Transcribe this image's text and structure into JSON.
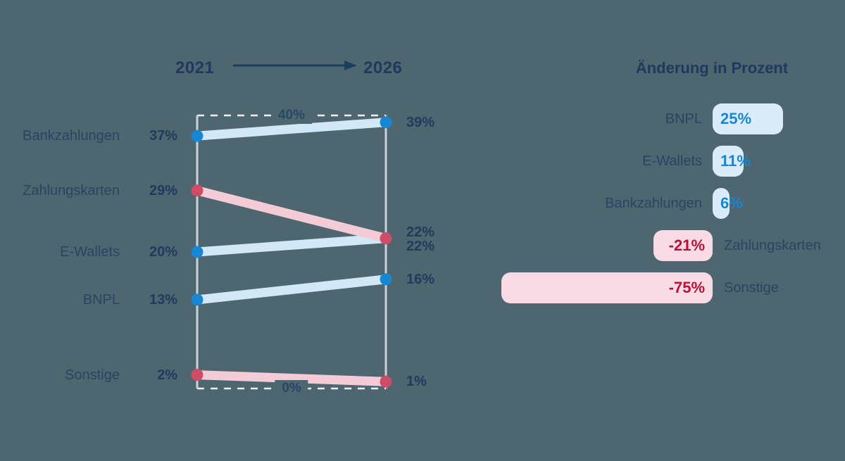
{
  "colors": {
    "background": "#4d6670",
    "navy_strong": "#223a5c",
    "navy_label": "#2c4462",
    "blue_accent": "#1787d3",
    "blue_ribbon": "#d2e8f7",
    "blue_bar": "#daecf9",
    "red_dot": "#cf4c66",
    "pink_ribbon": "#f3ccd8",
    "pink_bar": "#f8dbe4",
    "red_text": "#bb1136",
    "axis": "#ccd2d8",
    "grid_dash": "#eef1f3",
    "arrow": "#1c3e5e"
  },
  "chart_data": [
    {
      "type": "slope",
      "title": "2021 to 2026 share of payment methods",
      "x_labels": [
        "2021",
        "2026"
      ],
      "ylim": [
        0,
        40
      ],
      "unit": "%",
      "grid": "dashed-top-bottom",
      "gridlines": [
        {
          "value": 40,
          "label": "40%"
        },
        {
          "value": 0,
          "label": "0%"
        }
      ],
      "series": [
        {
          "name": "Bankzahlungen",
          "start": 37,
          "end": 39,
          "start_label": "37%",
          "end_label": "39%",
          "trend": "up"
        },
        {
          "name": "Zahlungskarten",
          "start": 29,
          "end": 22,
          "start_label": "29%",
          "end_label": "22%",
          "trend": "down"
        },
        {
          "name": "E-Wallets",
          "start": 20,
          "end": 22,
          "start_label": "20%",
          "end_label": "22%",
          "trend": "up"
        },
        {
          "name": "BNPL",
          "start": 13,
          "end": 16,
          "start_label": "13%",
          "end_label": "16%",
          "trend": "up"
        },
        {
          "name": "Sonstige",
          "start": 2,
          "end": 1,
          "start_label": "2%",
          "end_label": "1%",
          "trend": "down"
        }
      ]
    },
    {
      "type": "bar",
      "orientation": "horizontal",
      "title": "Änderung in Prozent",
      "legend_position": "none",
      "xlim": [
        -75,
        25
      ],
      "categories": [
        "BNPL",
        "E-Wallets",
        "Bankzahlungen",
        "Zahlungskarten",
        "Sonstige"
      ],
      "values": [
        25,
        11,
        6,
        -21,
        -75
      ],
      "value_labels": [
        "25%",
        "11%",
        "6%",
        "-21%",
        "-75%"
      ]
    }
  ]
}
